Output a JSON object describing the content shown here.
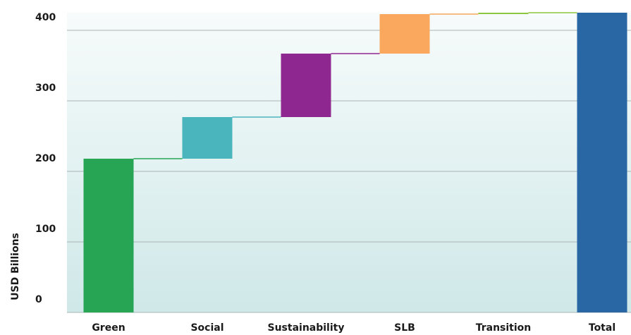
{
  "chart_data": {
    "type": "waterfall",
    "y_axis_label": "USD Billions",
    "categories": [
      "Green",
      "Social",
      "Sustainability",
      "SLB",
      "Transition",
      "Total"
    ],
    "values": [
      218,
      59,
      90,
      56,
      2,
      425
    ],
    "colors": [
      "#27a555",
      "#4bb5bd",
      "#8e278f",
      "#f9a85e",
      "#8dc63f",
      "#2866a4"
    ],
    "ylim": [
      0,
      425
    ],
    "yticks": [
      0,
      100,
      200,
      300,
      400
    ],
    "grid": true
  }
}
